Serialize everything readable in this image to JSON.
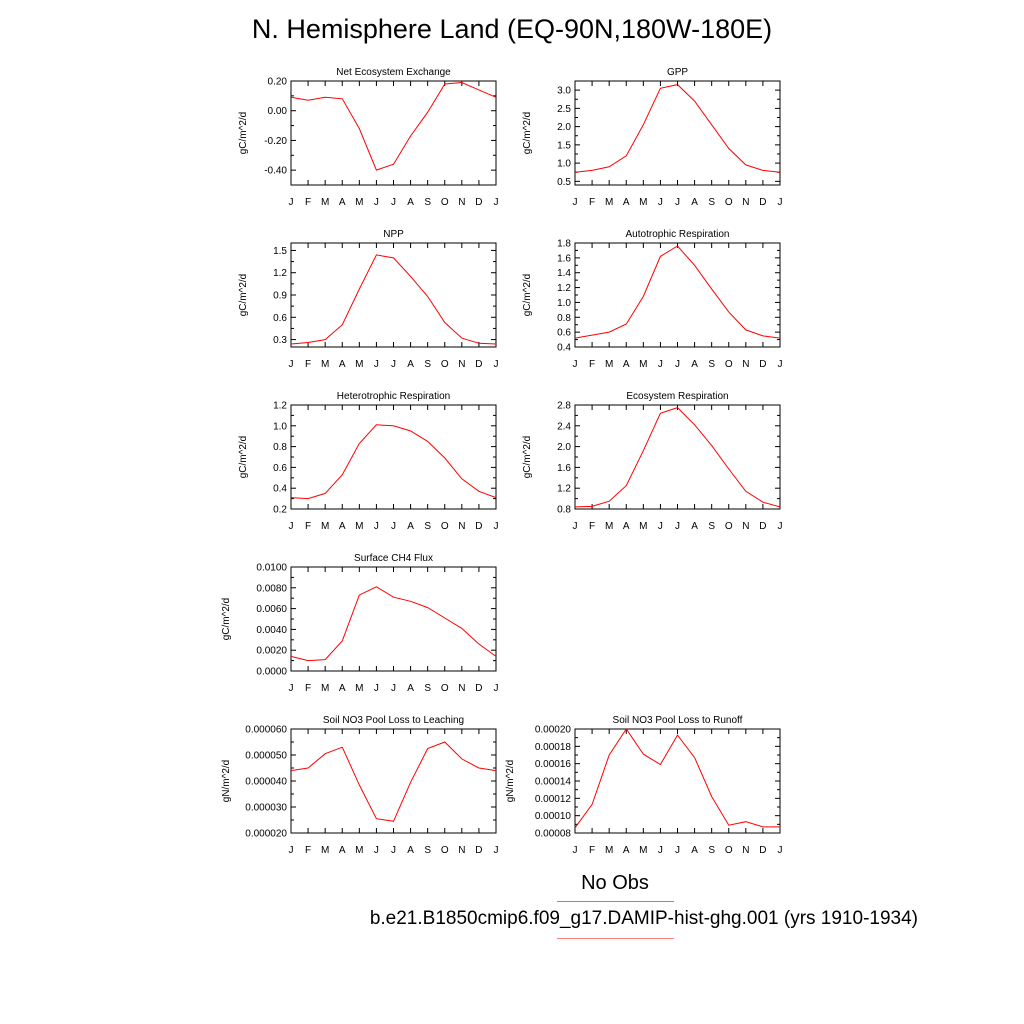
{
  "title": "N. Hemisphere Land (EQ-90N,180W-180E)",
  "legend": {
    "obs_label": "No Obs",
    "case_label": "b.e21.B1850cmip6.f09_g17.DAMIP-hist-ghg.001 (yrs 1910-1934)",
    "obs_color": "#7f7fff",
    "case_color": "#ff7f7f"
  },
  "chart_data": [
    {
      "type": "line",
      "title": "Net Ecosystem Exchange",
      "ylabel": "gC/m^2/d",
      "categories": [
        "J",
        "F",
        "M",
        "A",
        "M",
        "J",
        "J",
        "A",
        "S",
        "O",
        "N",
        "D",
        "J"
      ],
      "ylim": [
        -0.5,
        0.2
      ],
      "yticks": [
        0.2,
        0.0,
        -0.2,
        -0.4
      ],
      "ytick_labels": [
        "0.20",
        "0.00",
        "-0.20",
        "-0.40"
      ],
      "series": [
        {
          "color": "#ff0000",
          "values": [
            0.09,
            0.07,
            0.09,
            0.08,
            -0.12,
            -0.4,
            -0.36,
            -0.17,
            -0.01,
            0.18,
            0.19,
            0.14,
            0.09
          ]
        }
      ]
    },
    {
      "type": "line",
      "title": "GPP",
      "ylabel": "gC/m^2/d",
      "categories": [
        "J",
        "F",
        "M",
        "A",
        "M",
        "J",
        "J",
        "A",
        "S",
        "O",
        "N",
        "D",
        "J"
      ],
      "ylim": [
        0.4,
        3.25
      ],
      "yticks": [
        0.5,
        1.0,
        1.5,
        2.0,
        2.5,
        3.0
      ],
      "ytick_labels": [
        "0.5",
        "1.0",
        "1.5",
        "2.0",
        "2.5",
        "3.0"
      ],
      "series": [
        {
          "color": "#ff0000",
          "values": [
            0.75,
            0.8,
            0.9,
            1.2,
            2.05,
            3.05,
            3.15,
            2.7,
            2.05,
            1.4,
            0.95,
            0.8,
            0.75
          ]
        }
      ]
    },
    {
      "type": "line",
      "title": "NPP",
      "ylabel": "gC/m^2/d",
      "categories": [
        "J",
        "F",
        "M",
        "A",
        "M",
        "J",
        "J",
        "A",
        "S",
        "O",
        "N",
        "D",
        "J"
      ],
      "ylim": [
        0.2,
        1.6
      ],
      "yticks": [
        0.3,
        0.6,
        0.9,
        1.2,
        1.5
      ],
      "ytick_labels": [
        "0.3",
        "0.6",
        "0.9",
        "1.2",
        "1.5"
      ],
      "series": [
        {
          "color": "#ff0000",
          "values": [
            0.24,
            0.26,
            0.3,
            0.5,
            0.98,
            1.44,
            1.4,
            1.15,
            0.88,
            0.53,
            0.32,
            0.25,
            0.24
          ]
        }
      ]
    },
    {
      "type": "line",
      "title": "Autotrophic Respiration",
      "ylabel": "gC/m^2/d",
      "categories": [
        "J",
        "F",
        "M",
        "A",
        "M",
        "J",
        "J",
        "A",
        "S",
        "O",
        "N",
        "D",
        "J"
      ],
      "ylim": [
        0.4,
        1.8
      ],
      "yticks": [
        0.4,
        0.6,
        0.8,
        1.0,
        1.2,
        1.4,
        1.6,
        1.8
      ],
      "ytick_labels": [
        "0.4",
        "0.6",
        "0.8",
        "1.0",
        "1.2",
        "1.4",
        "1.6",
        "1.8"
      ],
      "series": [
        {
          "color": "#ff0000",
          "values": [
            0.52,
            0.56,
            0.6,
            0.71,
            1.08,
            1.62,
            1.76,
            1.5,
            1.18,
            0.87,
            0.63,
            0.55,
            0.52
          ]
        }
      ]
    },
    {
      "type": "line",
      "title": "Heterotrophic Respiration",
      "ylabel": "gC/m^2/d",
      "categories": [
        "J",
        "F",
        "M",
        "A",
        "M",
        "J",
        "J",
        "A",
        "S",
        "O",
        "N",
        "D",
        "J"
      ],
      "ylim": [
        0.2,
        1.2
      ],
      "yticks": [
        0.2,
        0.4,
        0.6,
        0.8,
        1.0,
        1.2
      ],
      "ytick_labels": [
        "0.2",
        "0.4",
        "0.6",
        "0.8",
        "1.0",
        "1.2"
      ],
      "series": [
        {
          "color": "#ff0000",
          "values": [
            0.31,
            0.3,
            0.35,
            0.53,
            0.83,
            1.01,
            1.0,
            0.95,
            0.85,
            0.69,
            0.49,
            0.37,
            0.31
          ]
        }
      ]
    },
    {
      "type": "line",
      "title": "Ecosystem Respiration",
      "ylabel": "gC/m^2/d",
      "categories": [
        "J",
        "F",
        "M",
        "A",
        "M",
        "J",
        "J",
        "A",
        "S",
        "O",
        "N",
        "D",
        "J"
      ],
      "ylim": [
        0.8,
        2.8
      ],
      "yticks": [
        0.8,
        1.2,
        1.6,
        2.0,
        2.4,
        2.8
      ],
      "ytick_labels": [
        "0.8",
        "1.2",
        "1.6",
        "2.0",
        "2.4",
        "2.8"
      ],
      "series": [
        {
          "color": "#ff0000",
          "values": [
            0.84,
            0.85,
            0.95,
            1.25,
            1.92,
            2.64,
            2.75,
            2.42,
            2.02,
            1.57,
            1.14,
            0.93,
            0.84
          ]
        }
      ]
    },
    {
      "type": "line",
      "title": "Surface CH4 Flux",
      "ylabel": "gC/m^2/d",
      "categories": [
        "J",
        "F",
        "M",
        "A",
        "M",
        "J",
        "J",
        "A",
        "S",
        "O",
        "N",
        "D",
        "J"
      ],
      "ylim": [
        0.0,
        0.01
      ],
      "yticks": [
        0.0,
        0.002,
        0.004,
        0.006,
        0.008,
        0.01
      ],
      "ytick_labels": [
        "0.0000",
        "0.0020",
        "0.0040",
        "0.0060",
        "0.0080",
        "0.0100"
      ],
      "series": [
        {
          "color": "#ff0000",
          "values": [
            0.0014,
            0.001,
            0.0011,
            0.0029,
            0.0073,
            0.0081,
            0.0071,
            0.0067,
            0.0061,
            0.0051,
            0.0041,
            0.0026,
            0.0014
          ]
        }
      ]
    },
    {
      "type": "line",
      "title": "Soil NO3 Pool Loss to Leaching",
      "ylabel": "gN/m^2/d",
      "categories": [
        "J",
        "F",
        "M",
        "A",
        "M",
        "J",
        "J",
        "A",
        "S",
        "O",
        "N",
        "D",
        "J"
      ],
      "ylim": [
        2e-05,
        6e-05
      ],
      "yticks": [
        2e-05,
        3e-05,
        4e-05,
        5e-05,
        6e-05
      ],
      "ytick_labels": [
        "0.000020",
        "0.000030",
        "0.000040",
        "0.000050",
        "0.000060"
      ],
      "series": [
        {
          "color": "#ff0000",
          "values": [
            4.4e-05,
            4.5e-05,
            5.05e-05,
            5.3e-05,
            3.85e-05,
            2.55e-05,
            2.45e-05,
            3.95e-05,
            5.25e-05,
            5.5e-05,
            4.85e-05,
            4.5e-05,
            4.4e-05
          ]
        }
      ]
    },
    {
      "type": "line",
      "title": "Soil NO3 Pool Loss to Runoff",
      "ylabel": "gN/m^2/d",
      "categories": [
        "J",
        "F",
        "M",
        "A",
        "M",
        "J",
        "J",
        "A",
        "S",
        "O",
        "N",
        "D",
        "J"
      ],
      "ylim": [
        8e-05,
        0.0002
      ],
      "yticks": [
        8e-05,
        0.0001,
        0.00012,
        0.00014,
        0.00016,
        0.00018,
        0.0002
      ],
      "ytick_labels": [
        "0.00008",
        "0.00010",
        "0.00012",
        "0.00014",
        "0.00016",
        "0.00018",
        "0.00020"
      ],
      "series": [
        {
          "color": "#ff0000",
          "values": [
            8.6e-05,
            0.000113,
            0.00017,
            0.0002,
            0.000171,
            0.000159,
            0.000193,
            0.000167,
            0.000122,
            8.9e-05,
            9.3e-05,
            8.7e-05,
            8.7e-05
          ]
        }
      ]
    }
  ]
}
